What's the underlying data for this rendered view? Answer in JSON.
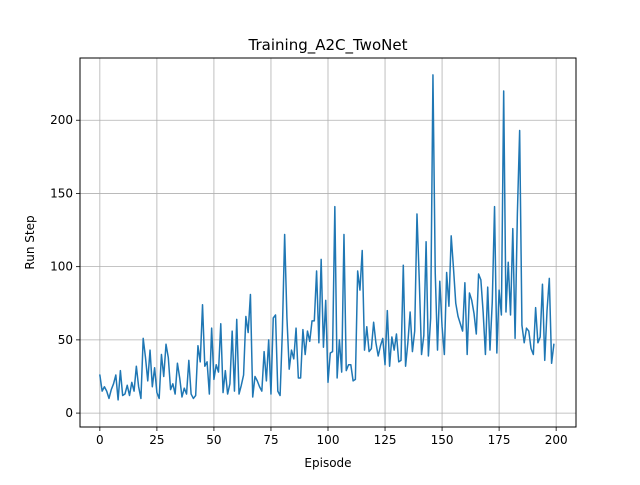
{
  "chart_data": {
    "type": "line",
    "title": "Training_A2C_TwoNet",
    "xlabel": "Episode",
    "ylabel": "Run Step",
    "xlim": [
      -8.7,
      208.7
    ],
    "ylim": [
      -9.5,
      242.5
    ],
    "xticks": [
      0,
      25,
      50,
      75,
      100,
      125,
      150,
      175,
      200
    ],
    "yticks": [
      0,
      50,
      100,
      150,
      200
    ],
    "grid": true,
    "line_color": "#1f77b4",
    "series": [
      {
        "x": [
          0,
          1,
          2,
          3,
          4,
          5,
          6,
          7,
          8,
          9,
          10,
          11,
          12,
          13,
          14,
          15,
          16,
          17,
          18,
          19,
          20,
          21,
          22,
          23,
          24,
          25,
          26,
          27,
          28,
          29,
          30,
          31,
          32,
          33,
          34,
          35,
          36,
          37,
          38,
          39,
          40,
          41,
          42,
          43,
          44,
          45,
          46,
          47,
          48,
          49,
          50,
          51,
          52,
          53,
          54,
          55,
          56,
          57,
          58,
          59,
          60,
          61,
          62,
          63,
          64,
          65,
          66,
          67,
          68,
          69,
          70,
          71,
          72,
          73,
          74,
          75,
          76,
          77,
          78,
          79,
          80,
          81,
          82,
          83,
          84,
          85,
          86,
          87,
          88,
          89,
          90,
          91,
          92,
          93,
          94,
          95,
          96,
          97,
          98,
          99,
          100,
          101,
          102,
          103,
          104,
          105,
          106,
          107,
          108,
          109,
          110,
          111,
          112,
          113,
          114,
          115,
          116,
          117,
          118,
          119,
          120,
          121,
          122,
          123,
          124,
          125,
          126,
          127,
          128,
          129,
          130,
          131,
          132,
          133,
          134,
          135,
          136,
          137,
          138,
          139,
          140,
          141,
          142,
          143,
          144,
          145,
          146,
          147,
          148,
          149,
          150,
          151,
          152,
          153,
          154,
          155,
          156,
          157,
          158,
          159,
          160,
          161,
          162,
          163,
          164,
          165,
          166,
          167,
          168,
          169,
          170,
          171,
          172,
          173,
          174,
          175,
          176,
          177,
          178,
          179,
          180,
          181,
          182,
          183,
          184,
          185,
          186,
          187,
          188,
          189,
          190,
          191,
          192,
          193,
          194,
          195,
          196,
          197,
          198,
          199
        ],
        "values": [
          26,
          15,
          18,
          15,
          10,
          16,
          20,
          26,
          9,
          29,
          12,
          13,
          19,
          12,
          21,
          15,
          32,
          18,
          10,
          51,
          38,
          22,
          43,
          18,
          31,
          14,
          10,
          40,
          25,
          47,
          38,
          16,
          20,
          13,
          34,
          24,
          11,
          17,
          13,
          36,
          13,
          10,
          12,
          46,
          35,
          74,
          32,
          35,
          13,
          58,
          23,
          33,
          28,
          61,
          14,
          29,
          13,
          20,
          56,
          15,
          64,
          13,
          19,
          26,
          66,
          55,
          81,
          11,
          25,
          22,
          18,
          15,
          42,
          22,
          50,
          13,
          65,
          67,
          15,
          12,
          56,
          122,
          65,
          30,
          43,
          37,
          58,
          24,
          24,
          57,
          40,
          56,
          49,
          63,
          63,
          97,
          48,
          105,
          45,
          77,
          21,
          41,
          42,
          141,
          24,
          50,
          28,
          122,
          29,
          33,
          33,
          22,
          23,
          97,
          84,
          111,
          43,
          59,
          42,
          44,
          62,
          48,
          39,
          46,
          51,
          33,
          70,
          32,
          52,
          43,
          54,
          35,
          36,
          101,
          32,
          48,
          69,
          42,
          56,
          136,
          91,
          40,
          53,
          117,
          39,
          65,
          231,
          96,
          43,
          90,
          59,
          40,
          96,
          73,
          121,
          99,
          75,
          66,
          61,
          56,
          89,
          40,
          82,
          77,
          68,
          54,
          95,
          91,
          69,
          40,
          86,
          43,
          76,
          141,
          41,
          84,
          67,
          220,
          69,
          103,
          67,
          126,
          51,
          136,
          193,
          60,
          48,
          58,
          56,
          44,
          40,
          72,
          48,
          52,
          88,
          36,
          70,
          92,
          34,
          47
        ]
      }
    ]
  }
}
